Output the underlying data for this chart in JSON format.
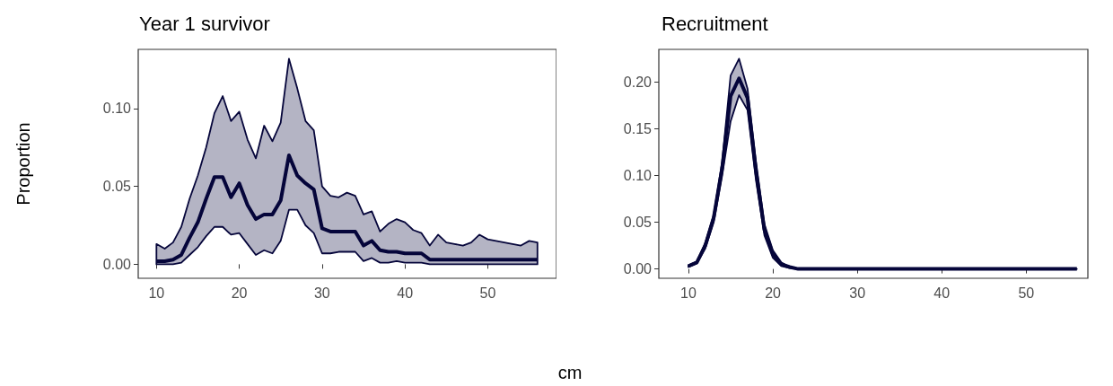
{
  "chart_data": [
    {
      "type": "line",
      "title": "Year 1 survivor",
      "xlabel": "cm",
      "ylabel": "Proportion",
      "marker": "none",
      "x": [
        10,
        11,
        12,
        13,
        14,
        15,
        16,
        17,
        18,
        19,
        20,
        21,
        22,
        23,
        24,
        25,
        26,
        27,
        28,
        29,
        30,
        31,
        32,
        33,
        34,
        35,
        36,
        37,
        38,
        39,
        40,
        41,
        42,
        43,
        44,
        45,
        46,
        47,
        48,
        49,
        50,
        51,
        52,
        53,
        54,
        55,
        56
      ],
      "series": [
        {
          "color": "#05053a",
          "values": [
            0.002,
            0.002,
            0.003,
            0.006,
            0.017,
            0.027,
            0.042,
            0.056,
            0.056,
            0.043,
            0.052,
            0.038,
            0.029,
            0.032,
            0.032,
            0.041,
            0.07,
            0.057,
            0.052,
            0.048,
            0.023,
            0.021,
            0.021,
            0.021,
            0.021,
            0.012,
            0.015,
            0.009,
            0.008,
            0.008,
            0.007,
            0.007,
            0.007,
            0.003,
            0.003,
            0.003,
            0.003,
            0.003,
            0.003,
            0.003,
            0.003,
            0.003,
            0.003,
            0.003,
            0.003,
            0.003,
            0.003
          ],
          "lower": [
            0.0,
            0.0,
            0.0,
            0.001,
            0.006,
            0.011,
            0.018,
            0.024,
            0.024,
            0.019,
            0.02,
            0.013,
            0.006,
            0.009,
            0.007,
            0.015,
            0.035,
            0.035,
            0.025,
            0.02,
            0.007,
            0.007,
            0.008,
            0.008,
            0.008,
            0.002,
            0.004,
            0.001,
            0.001,
            0.002,
            0.001,
            0.001,
            0.001,
            0.0,
            0.0,
            0.0,
            0.0,
            0.0,
            0.0,
            0.0,
            0.0,
            0.0,
            0.0,
            0.0,
            0.0,
            0.0,
            0.0
          ],
          "upper": [
            0.013,
            0.01,
            0.014,
            0.024,
            0.042,
            0.057,
            0.075,
            0.097,
            0.108,
            0.092,
            0.098,
            0.08,
            0.068,
            0.089,
            0.079,
            0.091,
            0.132,
            0.113,
            0.092,
            0.086,
            0.05,
            0.044,
            0.043,
            0.046,
            0.044,
            0.032,
            0.034,
            0.021,
            0.026,
            0.029,
            0.027,
            0.022,
            0.02,
            0.012,
            0.019,
            0.014,
            0.013,
            0.012,
            0.014,
            0.019,
            0.016,
            0.015,
            0.014,
            0.013,
            0.012,
            0.015,
            0.014
          ]
        }
      ],
      "xlim": [
        7.8,
        58.3
      ],
      "xticks": [
        10,
        20,
        30,
        40,
        50
      ],
      "ylim": [
        -0.009,
        0.138
      ],
      "yticks": [
        {
          "value": 0,
          "label": "0.00"
        },
        {
          "value": 0.05,
          "label": "0.05"
        },
        {
          "value": 0.1,
          "label": "0.10"
        }
      ]
    },
    {
      "type": "line",
      "title": "Recruitment",
      "marker": "none",
      "x": [
        10,
        11,
        12,
        13,
        14,
        15,
        16,
        17,
        18,
        19,
        20,
        21,
        22,
        23,
        24,
        25,
        26,
        27,
        28,
        29,
        30,
        31,
        32,
        33,
        34,
        35,
        36,
        37,
        38,
        39,
        40,
        41,
        42,
        43,
        44,
        45,
        46,
        47,
        48,
        49,
        50,
        51,
        52,
        53,
        54,
        55,
        56
      ],
      "series": [
        {
          "color": "#05053a",
          "values": [
            0.003,
            0.007,
            0.025,
            0.055,
            0.108,
            0.185,
            0.204,
            0.183,
            0.105,
            0.042,
            0.016,
            0.005,
            0.002,
            0,
            0,
            0,
            0,
            0,
            0,
            0,
            0,
            0,
            0,
            0,
            0,
            0,
            0,
            0,
            0,
            0,
            0,
            0,
            0,
            0,
            0,
            0,
            0,
            0,
            0,
            0,
            0,
            0,
            0,
            0,
            0,
            0,
            0
          ],
          "lower": [
            0.002,
            0.006,
            0.022,
            0.05,
            0.1,
            0.158,
            0.186,
            0.17,
            0.095,
            0.036,
            0.012,
            0.003,
            0.001,
            0,
            0,
            0,
            0,
            0,
            0,
            0,
            0,
            0,
            0,
            0,
            0,
            0,
            0,
            0,
            0,
            0,
            0,
            0,
            0,
            0,
            0,
            0,
            0,
            0,
            0,
            0,
            0,
            0,
            0,
            0,
            0,
            0,
            0
          ],
          "upper": [
            0.004,
            0.008,
            0.028,
            0.058,
            0.115,
            0.207,
            0.225,
            0.193,
            0.115,
            0.048,
            0.02,
            0.007,
            0.002,
            0,
            0,
            0,
            0,
            0,
            0,
            0,
            0,
            0,
            0,
            0,
            0,
            0,
            0,
            0,
            0,
            0,
            0,
            0,
            0,
            0,
            0,
            0,
            0,
            0,
            0,
            0,
            0,
            0,
            0,
            0,
            0,
            0,
            0
          ]
        }
      ],
      "xlim": [
        6.5,
        57.3
      ],
      "xticks": [
        10,
        20,
        30,
        40,
        50
      ],
      "ylim": [
        -0.01,
        0.235
      ],
      "yticks": [
        {
          "value": 0,
          "label": "0.00"
        },
        {
          "value": 0.05,
          "label": "0.05"
        },
        {
          "value": 0.1,
          "label": "0.10"
        },
        {
          "value": 0.15,
          "label": "0.15"
        },
        {
          "value": 0.2,
          "label": "0.20"
        }
      ]
    }
  ]
}
